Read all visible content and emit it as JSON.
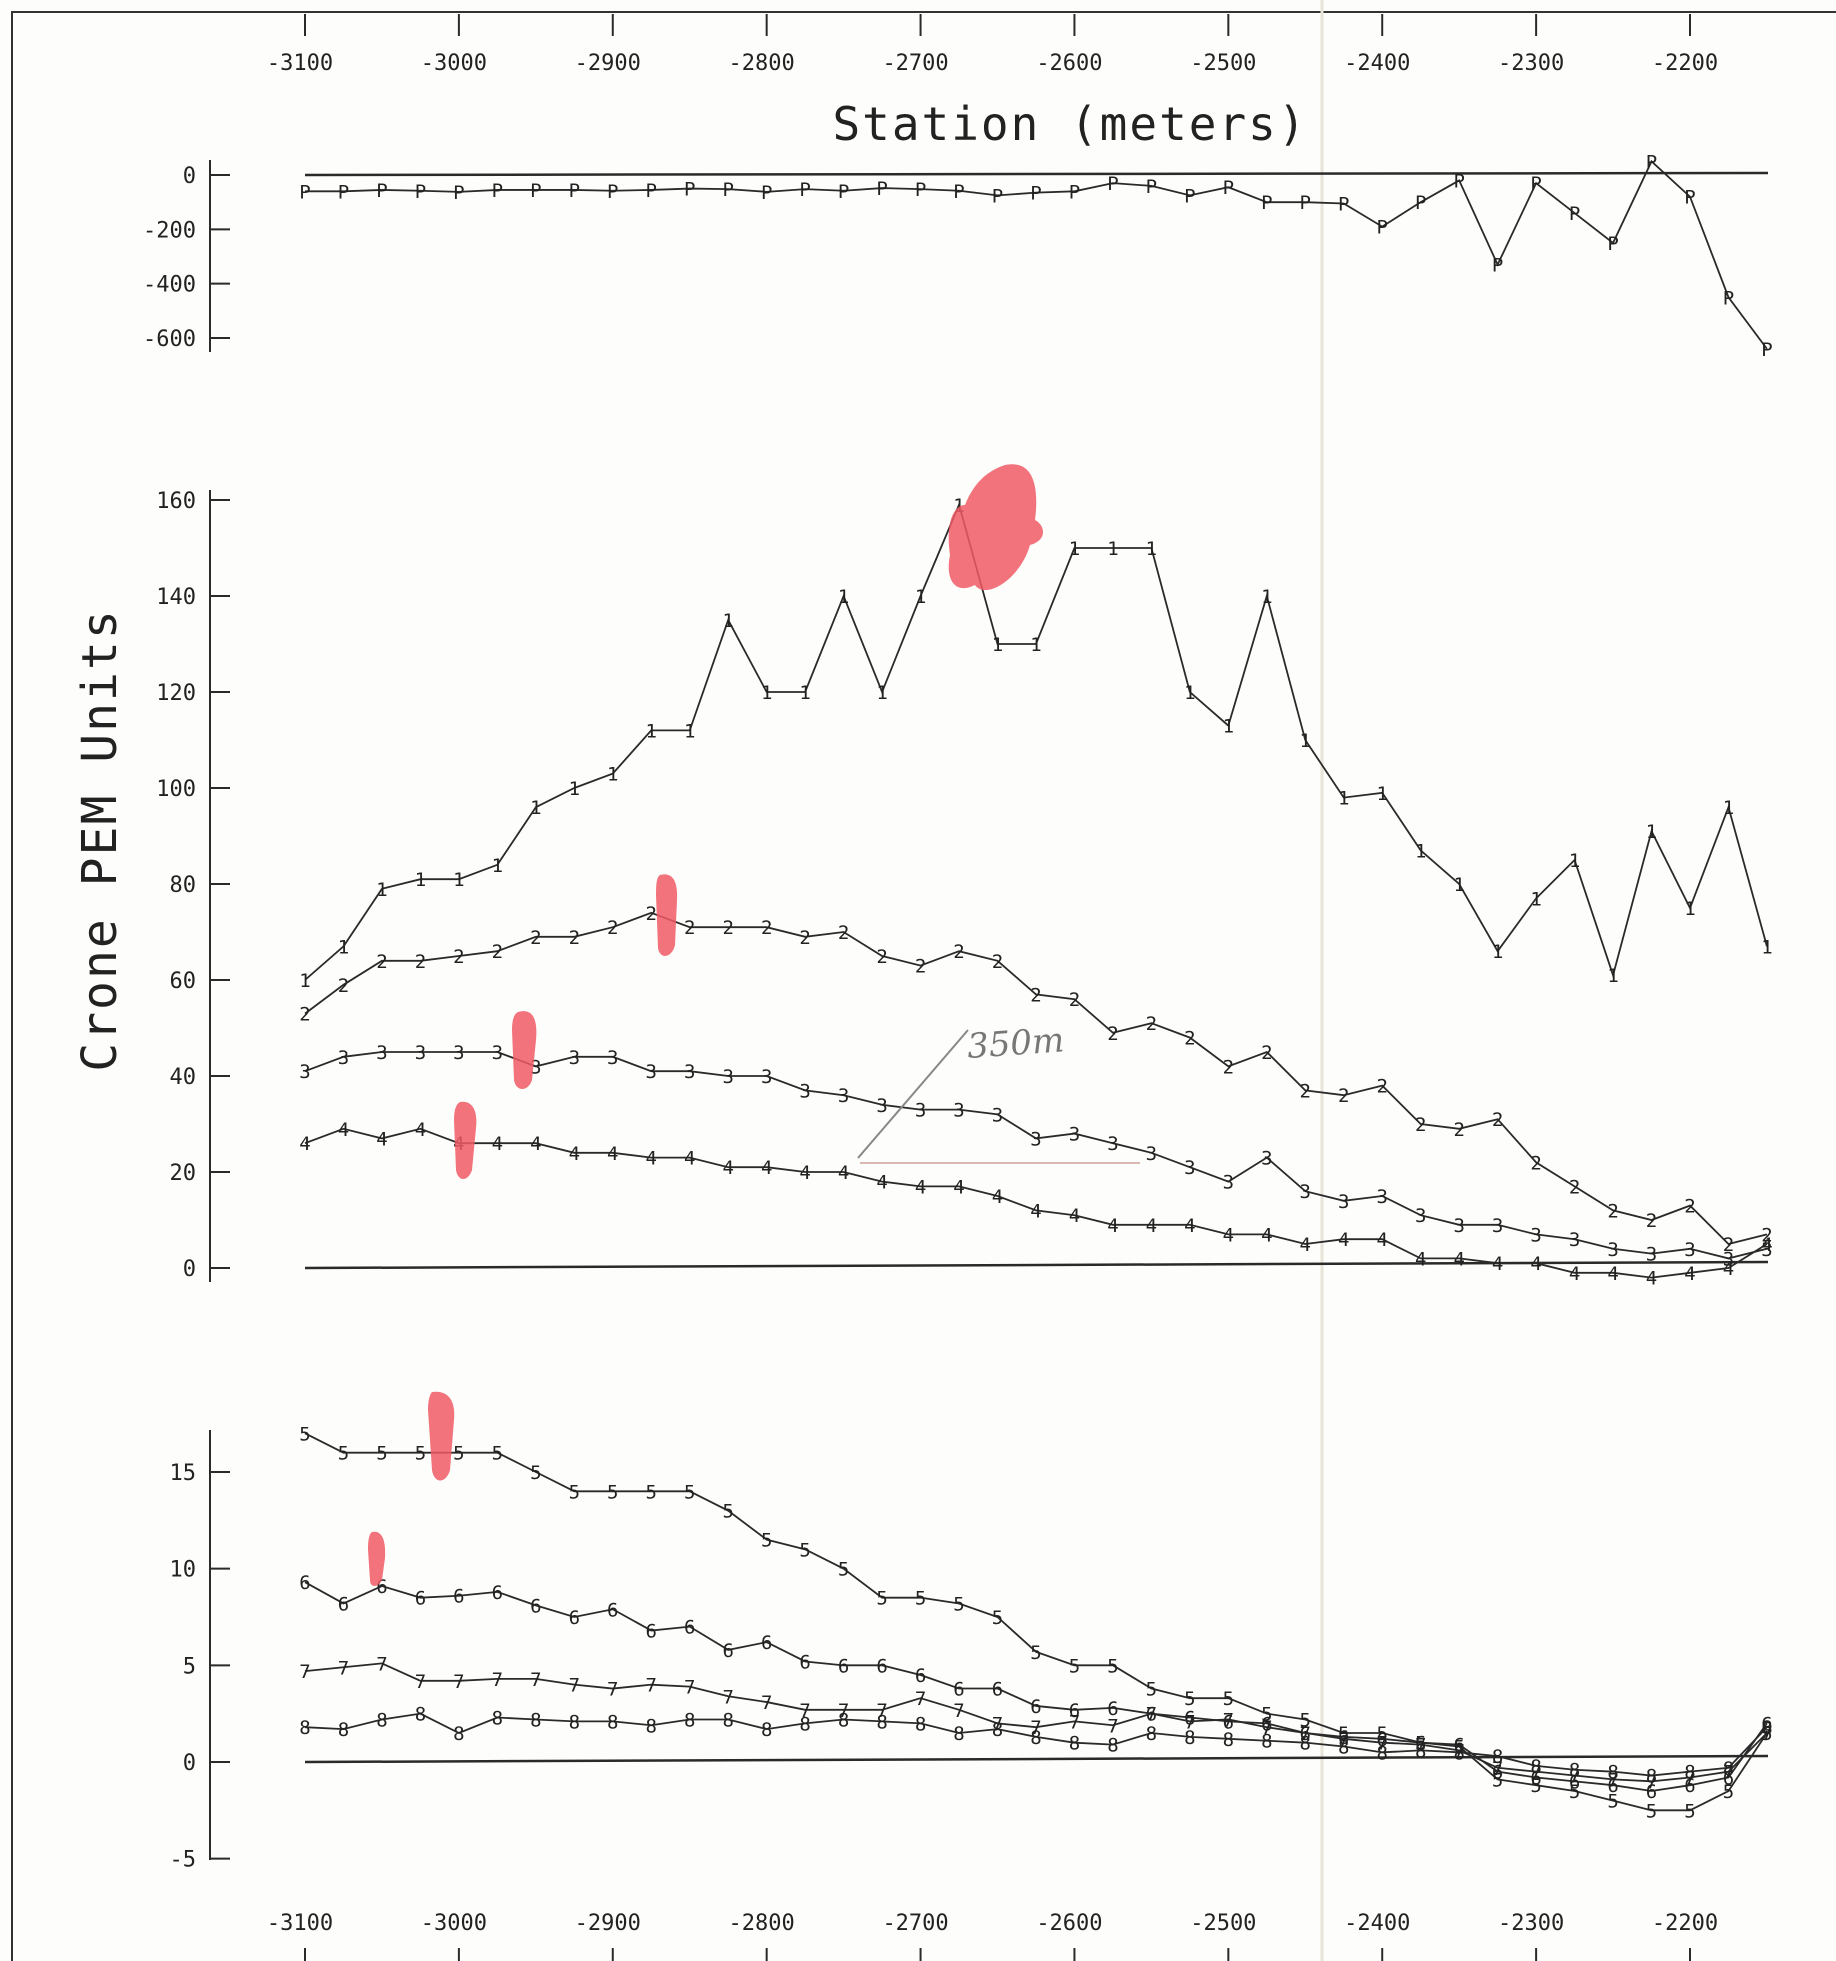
{
  "figure": {
    "xlabel": "Station (meters)",
    "ylabel": "Crone PEM Units",
    "annotation": "350m",
    "colors": {
      "ink": "#2a2a2a",
      "highlight": "#f05a64",
      "paper": "#fdfdfb"
    }
  },
  "chart_data": [
    {
      "type": "line",
      "panel": "primary",
      "xlim": [
        -3120,
        -2140
      ],
      "ylim": [
        -650,
        50
      ],
      "yticks": [
        0,
        -200,
        -400,
        -600
      ],
      "xticks": [
        -3100,
        -3000,
        -2900,
        -2800,
        -2700,
        -2600,
        -2500,
        -2400,
        -2300,
        -2200
      ],
      "x": [
        -3100,
        -3075,
        -3050,
        -3025,
        -3000,
        -2975,
        -2950,
        -2925,
        -2900,
        -2875,
        -2850,
        -2825,
        -2800,
        -2775,
        -2750,
        -2725,
        -2700,
        -2675,
        -2650,
        -2625,
        -2600,
        -2575,
        -2550,
        -2525,
        -2500,
        -2475,
        -2450,
        -2425,
        -2400,
        -2375,
        -2350,
        -2325,
        -2300,
        -2275,
        -2250,
        -2225,
        -2200,
        -2175,
        -2150
      ],
      "series": [
        {
          "name": "P",
          "values": [
            -60,
            -60,
            -55,
            -58,
            -62,
            -55,
            -55,
            -55,
            -58,
            -55,
            -50,
            -52,
            -62,
            -52,
            -58,
            -48,
            -52,
            -58,
            -75,
            -65,
            -60,
            -30,
            -40,
            -75,
            -45,
            -100,
            -100,
            -105,
            -190,
            -100,
            -20,
            -330,
            -30,
            -140,
            -250,
            50,
            -80,
            -450,
            -640
          ]
        }
      ]
    },
    {
      "type": "line",
      "panel": "channels-1-4",
      "xlim": [
        -3120,
        -2140
      ],
      "ylim": [
        -3,
        165
      ],
      "yticks": [
        0,
        20,
        40,
        60,
        80,
        100,
        120,
        140,
        160
      ],
      "x": [
        -3100,
        -3075,
        -3050,
        -3025,
        -3000,
        -2975,
        -2950,
        -2925,
        -2900,
        -2875,
        -2850,
        -2825,
        -2800,
        -2775,
        -2750,
        -2725,
        -2700,
        -2675,
        -2650,
        -2625,
        -2600,
        -2575,
        -2550,
        -2525,
        -2500,
        -2475,
        -2450,
        -2425,
        -2400,
        -2375,
        -2350,
        -2325,
        -2300,
        -2275,
        -2250,
        -2225,
        -2200,
        -2175,
        -2150
      ],
      "series": [
        {
          "name": "1",
          "values": [
            60,
            67,
            79,
            81,
            81,
            84,
            96,
            100,
            103,
            112,
            112,
            135,
            120,
            120,
            140,
            120,
            140,
            159,
            130,
            130,
            150,
            150,
            150,
            120,
            113,
            140,
            110,
            98,
            99,
            87,
            80,
            66,
            77,
            85,
            61,
            91,
            75,
            96,
            67
          ]
        },
        {
          "name": "2",
          "values": [
            53,
            59,
            64,
            64,
            65,
            66,
            69,
            69,
            71,
            74,
            71,
            71,
            71,
            69,
            70,
            65,
            63,
            66,
            64,
            57,
            56,
            49,
            51,
            48,
            42,
            45,
            37,
            36,
            38,
            30,
            29,
            31,
            22,
            17,
            12,
            10,
            13,
            5,
            7
          ]
        },
        {
          "name": "3",
          "values": [
            41,
            44,
            45,
            45,
            45,
            45,
            42,
            44,
            44,
            41,
            41,
            40,
            40,
            37,
            36,
            34,
            33,
            33,
            32,
            27,
            28,
            26,
            24,
            21,
            18,
            23,
            16,
            14,
            15,
            11,
            9,
            9,
            7,
            6,
            4,
            3,
            4,
            2,
            4
          ]
        },
        {
          "name": "4",
          "values": [
            26,
            29,
            27,
            29,
            26,
            26,
            26,
            24,
            24,
            23,
            23,
            21,
            21,
            20,
            20,
            18,
            17,
            17,
            15,
            12,
            11,
            9,
            9,
            9,
            7,
            7,
            5,
            6,
            6,
            2,
            2,
            1,
            1,
            -1,
            -1,
            -2,
            -1,
            0,
            5
          ]
        }
      ]
    },
    {
      "type": "line",
      "panel": "channels-5-8",
      "xlim": [
        -3120,
        -2140
      ],
      "ylim": [
        -5.5,
        17
      ],
      "yticks": [
        -5,
        0,
        5,
        10,
        15
      ],
      "x": [
        -3100,
        -3075,
        -3050,
        -3025,
        -3000,
        -2975,
        -2950,
        -2925,
        -2900,
        -2875,
        -2850,
        -2825,
        -2800,
        -2775,
        -2750,
        -2725,
        -2700,
        -2675,
        -2650,
        -2625,
        -2600,
        -2575,
        -2550,
        -2525,
        -2500,
        -2475,
        -2450,
        -2425,
        -2400,
        -2375,
        -2350,
        -2325,
        -2300,
        -2275,
        -2250,
        -2225,
        -2200,
        -2175,
        -2150
      ],
      "series": [
        {
          "name": "5",
          "values": [
            17,
            16,
            16,
            16,
            16,
            16,
            15,
            14,
            14,
            14,
            14,
            13,
            11.5,
            11,
            10,
            8.5,
            8.5,
            8.2,
            7.5,
            5.7,
            5,
            5,
            3.8,
            3.3,
            3.3,
            2.5,
            2.2,
            1.5,
            1.5,
            1,
            0.8,
            -0.9,
            -1.2,
            -1.5,
            -2,
            -2.5,
            -2.5,
            -1.5,
            1.5
          ]
        },
        {
          "name": "6",
          "values": [
            9.3,
            8.2,
            9.1,
            8.5,
            8.6,
            8.8,
            8.1,
            7.5,
            7.9,
            6.8,
            7,
            5.8,
            6.2,
            5.2,
            5,
            5,
            4.5,
            3.8,
            3.8,
            2.9,
            2.7,
            2.8,
            2.5,
            2.3,
            2.1,
            2,
            1.5,
            1.3,
            1.2,
            1,
            0.9,
            -0.5,
            -0.8,
            -1,
            -1.2,
            -1.5,
            -1.2,
            -0.8,
            2
          ]
        },
        {
          "name": "7",
          "values": [
            4.7,
            4.9,
            5.1,
            4.2,
            4.2,
            4.3,
            4.3,
            4,
            3.8,
            4,
            3.9,
            3.4,
            3.1,
            2.7,
            2.7,
            2.7,
            3.3,
            2.7,
            2,
            1.8,
            2.1,
            1.9,
            2.5,
            2.1,
            2.2,
            1.8,
            1.5,
            1.2,
            1,
            0.9,
            0.6,
            -0.3,
            -0.5,
            -0.7,
            -0.9,
            -1,
            -0.8,
            -0.5,
            1.5
          ]
        },
        {
          "name": "8",
          "values": [
            1.8,
            1.7,
            2.2,
            2.5,
            1.5,
            2.3,
            2.2,
            2.1,
            2.1,
            1.9,
            2.2,
            2.2,
            1.7,
            2,
            2.2,
            2.1,
            2,
            1.5,
            1.7,
            1.3,
            1,
            0.9,
            1.5,
            1.3,
            1.2,
            1.1,
            1,
            0.8,
            0.5,
            0.6,
            0.5,
            0.3,
            -0.2,
            -0.4,
            -0.5,
            -0.7,
            -0.5,
            -0.3,
            1.8
          ]
        }
      ]
    }
  ]
}
